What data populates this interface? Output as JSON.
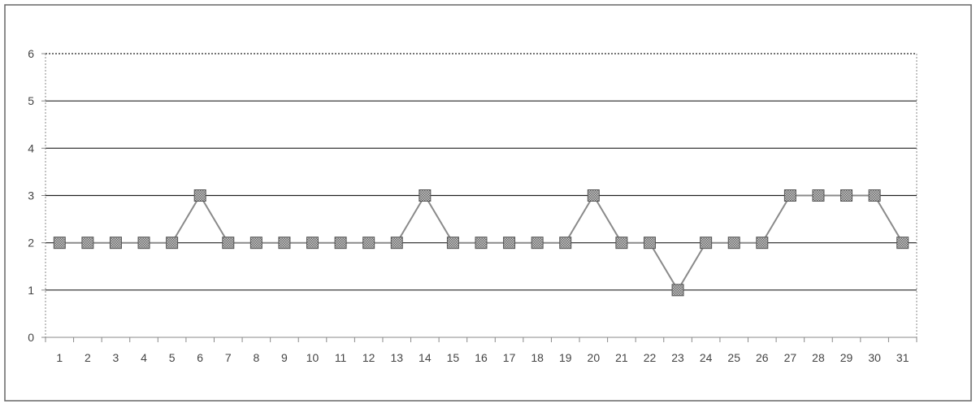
{
  "chart_data": {
    "type": "line",
    "title": "",
    "xlabel": "",
    "ylabel": "",
    "x": [
      "1",
      "2",
      "3",
      "4",
      "5",
      "6",
      "7",
      "8",
      "9",
      "10",
      "11",
      "12",
      "13",
      "14",
      "15",
      "16",
      "17",
      "18",
      "19",
      "20",
      "21",
      "22",
      "23",
      "24",
      "25",
      "26",
      "27",
      "28",
      "29",
      "30",
      "31"
    ],
    "series": [
      {
        "values": [
          2,
          2,
          2,
          2,
          2,
          3,
          2,
          2,
          2,
          2,
          2,
          2,
          2,
          3,
          2,
          2,
          2,
          2,
          2,
          3,
          2,
          2,
          1,
          2,
          2,
          2,
          3,
          3,
          3,
          3,
          2
        ]
      }
    ],
    "yticks": [
      "0",
      "1",
      "2",
      "3",
      "4",
      "5",
      "6"
    ],
    "ylim": [
      0,
      6
    ],
    "grid": true,
    "legend": "none",
    "colors": {
      "line": "#8a8a8a",
      "marker_fill": "#9a9a9a",
      "marker_stroke": "#555555",
      "gridline": "#222222",
      "axis": "#888888"
    }
  }
}
